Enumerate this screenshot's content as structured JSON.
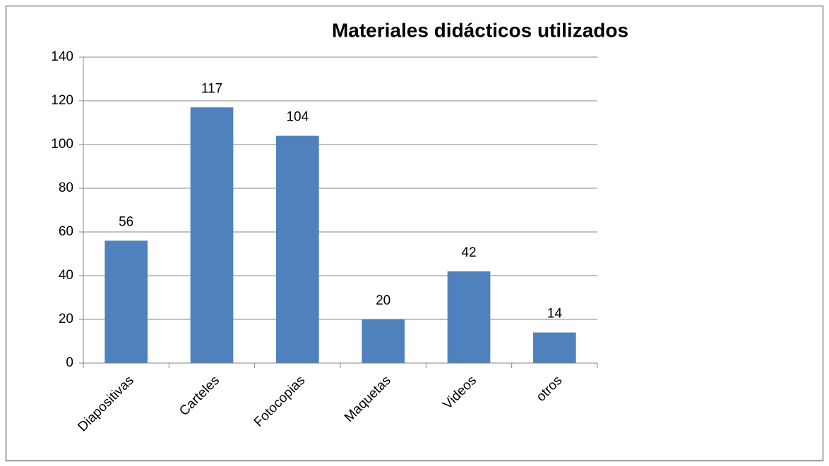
{
  "chart_data": {
    "type": "bar",
    "title": "Materiales didácticos utilizados",
    "categories": [
      "Diapositivas",
      "Carteles",
      "Fotocopias",
      "Maquetas",
      "Videos",
      "otros"
    ],
    "values": [
      56,
      117,
      104,
      20,
      42,
      14
    ],
    "color": "#4f81bd",
    "ylim": [
      0,
      140
    ],
    "yticks": [
      0,
      20,
      40,
      60,
      80,
      100,
      120,
      140
    ],
    "grid": true
  }
}
